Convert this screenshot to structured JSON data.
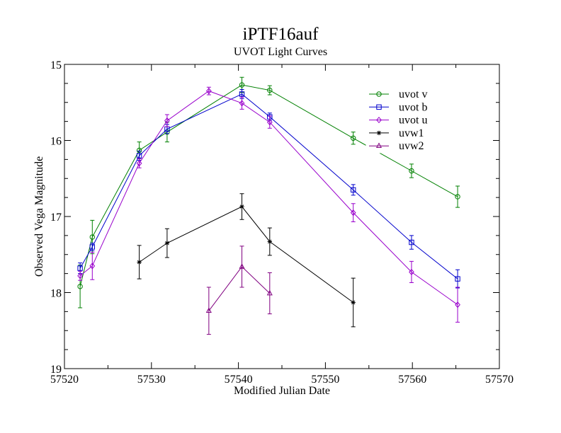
{
  "chart_data": {
    "type": "line",
    "title": "iPTF16auf",
    "subtitle": "UVOT Light Curves",
    "xlabel": "Modified Julian Date",
    "ylabel": "Observed Vega Magnitude",
    "xlim": [
      57520,
      57570
    ],
    "ylim": [
      19,
      15
    ],
    "y_inverted": true,
    "x_ticks": [
      57520,
      57530,
      57540,
      57550,
      57560,
      57570
    ],
    "y_ticks": [
      15,
      16,
      17,
      18,
      19
    ],
    "grid": false,
    "legend_position": "top-right",
    "series": [
      {
        "name": "uvot v",
        "color": "#008000",
        "marker": "circle",
        "x": [
          57521.8,
          57523.2,
          57528.6,
          57531.8,
          57540.4,
          57543.6,
          57553.2,
          57559.9,
          57565.2
        ],
        "y": [
          17.92,
          17.27,
          16.13,
          15.89,
          15.27,
          15.34,
          15.97,
          16.4,
          16.74
        ],
        "err": [
          0.28,
          0.22,
          0.11,
          0.13,
          0.1,
          0.06,
          0.08,
          0.09,
          0.14
        ]
      },
      {
        "name": "uvot b",
        "color": "#0000cc",
        "marker": "square",
        "x": [
          57521.8,
          57523.2,
          57528.6,
          57531.8,
          57540.4,
          57543.6,
          57553.2,
          57559.9,
          57565.2
        ],
        "y": [
          17.68,
          17.4,
          16.2,
          15.85,
          15.39,
          15.69,
          16.65,
          17.34,
          17.82
        ],
        "err": [
          0.07,
          0.05,
          0.06,
          0.06,
          0.06,
          0.05,
          0.07,
          0.09,
          0.12
        ]
      },
      {
        "name": "uvot u",
        "color": "#9900cc",
        "marker": "diamond",
        "x": [
          57521.8,
          57523.2,
          57528.6,
          57531.8,
          57536.6,
          57540.4,
          57543.6,
          57553.2,
          57559.9,
          57565.2
        ],
        "y": [
          17.78,
          17.65,
          16.3,
          15.74,
          15.35,
          15.51,
          15.76,
          16.95,
          17.73,
          18.16
        ],
        "err": [
          0.06,
          0.18,
          0.06,
          0.08,
          0.05,
          0.08,
          0.08,
          0.12,
          0.14,
          0.23
        ]
      },
      {
        "name": "uvw1",
        "color": "#000000",
        "marker": "star",
        "x": [
          57528.6,
          57531.8,
          57540.4,
          57543.6,
          57553.2
        ],
        "y": [
          17.6,
          17.35,
          16.87,
          17.33,
          18.13
        ],
        "err": [
          0.22,
          0.19,
          0.17,
          0.18,
          0.32
        ]
      },
      {
        "name": "uvw2",
        "color": "#800080",
        "marker": "triangle",
        "x": [
          57536.6,
          57540.4,
          57543.6
        ],
        "y": [
          18.24,
          17.66,
          18.01
        ],
        "err": [
          0.31,
          0.27,
          0.27
        ]
      }
    ]
  }
}
